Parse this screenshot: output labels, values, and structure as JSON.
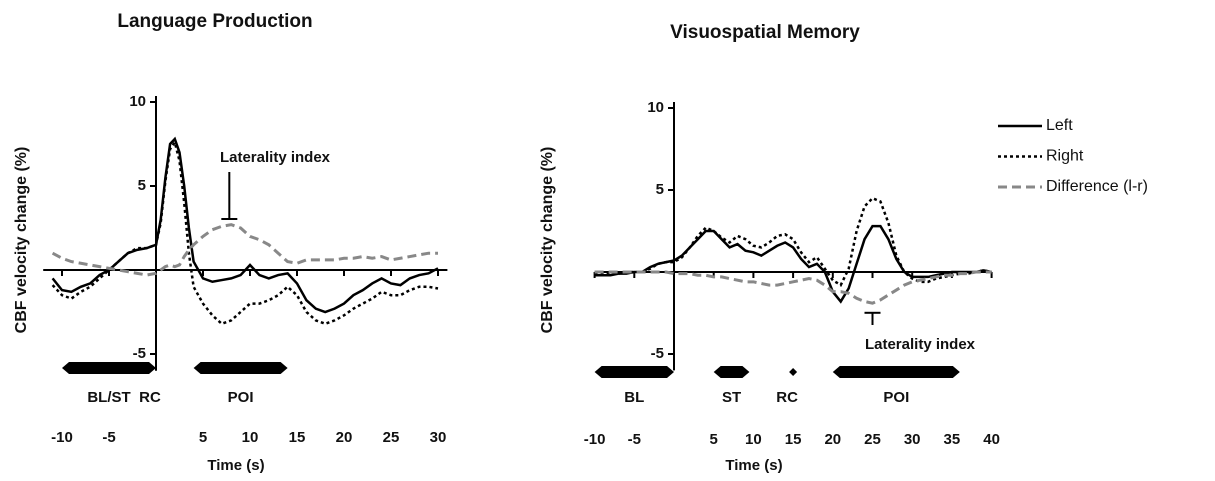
{
  "chart_data": [
    {
      "type": "line",
      "title": "Language Production",
      "y_label": "CBF velocity change (%)",
      "x_label": "Time (s)",
      "xlim": [
        -12,
        31
      ],
      "ylim": [
        -6,
        10
      ],
      "xticks": [
        -10,
        -5,
        5,
        10,
        15,
        20,
        25,
        30
      ],
      "yticks": [
        -5,
        5,
        10
      ],
      "x": [
        -11,
        -10,
        -9,
        -8,
        -7,
        -6,
        -5,
        -4,
        -3,
        -2,
        -1,
        0,
        0.5,
        1,
        1.5,
        2,
        2.5,
        3,
        3.5,
        4,
        5,
        6,
        7,
        8,
        9,
        10,
        11,
        12,
        13,
        14,
        15,
        16,
        17,
        18,
        19,
        20,
        21,
        22,
        23,
        24,
        25,
        26,
        27,
        28,
        29,
        30
      ],
      "series": [
        {
          "name": "Left",
          "color": "#000000",
          "dash": "solid",
          "values": [
            -0.5,
            -1.2,
            -1.3,
            -1,
            -0.8,
            -0.3,
            0,
            0.5,
            1,
            1.2,
            1.3,
            1.5,
            3,
            5.5,
            7.5,
            7.8,
            7,
            5,
            2.5,
            0.5,
            -0.5,
            -0.7,
            -0.6,
            -0.5,
            -0.3,
            0.3,
            -0.3,
            -0.5,
            -0.3,
            -0.2,
            -0.8,
            -1.8,
            -2.3,
            -2.5,
            -2.3,
            -2,
            -1.5,
            -1.2,
            -0.8,
            -0.5,
            -0.8,
            -0.9,
            -0.5,
            -0.3,
            -0.2,
            0.1
          ]
        },
        {
          "name": "Right",
          "color": "#000000",
          "dash": "dotted",
          "values": [
            -0.9,
            -1.5,
            -1.7,
            -1.3,
            -1,
            -0.5,
            0,
            0.5,
            1,
            1.3,
            1.3,
            1.5,
            2.8,
            5.3,
            7.2,
            7.6,
            6.5,
            4,
            1,
            -1,
            -2,
            -2.7,
            -3.2,
            -3,
            -2.5,
            -2,
            -2,
            -1.8,
            -1.5,
            -1,
            -1.5,
            -2.5,
            -3,
            -3.2,
            -3,
            -2.7,
            -2.3,
            -2,
            -1.7,
            -1.3,
            -1.5,
            -1.5,
            -1.2,
            -1,
            -1,
            -1.1
          ]
        },
        {
          "name": "Difference (l-r)",
          "color": "#888888",
          "dash": "dashed",
          "values": [
            1,
            0.7,
            0.5,
            0.4,
            0.3,
            0.2,
            0.1,
            0,
            -0.1,
            -0.2,
            -0.3,
            -0.2,
            0,
            0.2,
            0.3,
            0.2,
            0.3,
            0.8,
            1.2,
            1.5,
            2,
            2.4,
            2.6,
            2.7,
            2.5,
            2,
            1.8,
            1.5,
            1,
            0.5,
            0.4,
            0.6,
            0.6,
            0.6,
            0.6,
            0.7,
            0.7,
            0.8,
            0.7,
            0.8,
            0.6,
            0.7,
            0.8,
            0.9,
            1,
            1
          ]
        }
      ],
      "periods": [
        {
          "label": "BL/ST",
          "start": -10,
          "end": 0
        },
        {
          "label": "RC",
          "start": 0,
          "end": 0
        },
        {
          "label": "POI",
          "start": 4,
          "end": 14
        }
      ],
      "annotation": {
        "text": "Laterality index",
        "x": 7.8,
        "y": 2.8
      }
    },
    {
      "type": "line",
      "title": "Visuospatial Memory",
      "y_label": "CBF velocity change (%)",
      "x_label": "Time (s)",
      "xlim": [
        -10,
        40
      ],
      "ylim": [
        -6,
        10
      ],
      "xticks": [
        -10,
        -5,
        5,
        10,
        15,
        20,
        25,
        30,
        35,
        40
      ],
      "yticks": [
        -5,
        5,
        10
      ],
      "x": [
        -10,
        -9,
        -8,
        -7,
        -6,
        -5,
        -4,
        -3,
        -2,
        -1,
        0,
        1,
        2,
        3,
        4,
        5,
        6,
        7,
        8,
        9,
        10,
        11,
        12,
        13,
        14,
        15,
        16,
        17,
        18,
        19,
        20,
        21,
        22,
        23,
        24,
        25,
        26,
        27,
        28,
        29,
        30,
        31,
        32,
        33,
        34,
        35,
        36,
        37,
        38,
        39,
        40
      ],
      "series": [
        {
          "name": "Left",
          "color": "#000000",
          "dash": "solid",
          "values": [
            -0.2,
            -0.2,
            -0.2,
            -0.1,
            -0.1,
            0,
            0,
            0.3,
            0.5,
            0.6,
            0.7,
            1,
            1.5,
            2,
            2.5,
            2.5,
            2,
            1.5,
            1.7,
            1.3,
            1.2,
            1,
            1.3,
            1.6,
            1.8,
            1.5,
            0.8,
            0.3,
            0.5,
            0,
            -1.2,
            -1.8,
            -1,
            0.5,
            2,
            2.8,
            2.8,
            2,
            0.8,
            0,
            -0.3,
            -0.3,
            -0.3,
            -0.2,
            -0.1,
            0,
            0,
            0,
            0,
            0.1,
            0
          ]
        },
        {
          "name": "Right",
          "color": "#000000",
          "dash": "dotted",
          "values": [
            -0.1,
            -0.1,
            -0.1,
            -0.1,
            0,
            0,
            0,
            0.2,
            0.5,
            0.6,
            0.6,
            0.9,
            1.5,
            2.2,
            2.7,
            2.5,
            2.1,
            1.8,
            2.2,
            2,
            1.6,
            1.5,
            1.8,
            2.2,
            2.3,
            2,
            1.2,
            0.6,
            0.9,
            0.2,
            -0.5,
            -0.8,
            0.2,
            2.5,
            4,
            4.5,
            4.3,
            3,
            1,
            0,
            -0.4,
            -0.6,
            -0.6,
            -0.4,
            -0.3,
            -0.2,
            -0.1,
            -0.1,
            0,
            0.1,
            0
          ]
        },
        {
          "name": "Difference (l-r)",
          "color": "#888888",
          "dash": "dashed",
          "values": [
            0,
            0,
            0,
            0,
            0,
            0,
            0,
            0,
            0,
            0,
            -0.1,
            -0.1,
            -0.1,
            -0.2,
            -0.2,
            -0.3,
            -0.3,
            -0.4,
            -0.5,
            -0.6,
            -0.6,
            -0.7,
            -0.8,
            -0.8,
            -0.7,
            -0.6,
            -0.5,
            -0.4,
            -0.5,
            -0.8,
            -1.2,
            -1.2,
            -1.3,
            -1.6,
            -1.8,
            -1.9,
            -1.7,
            -1.4,
            -1.1,
            -0.8,
            -0.6,
            -0.5,
            -0.4,
            -0.3,
            -0.2,
            -0.2,
            -0.1,
            -0.1,
            0,
            0,
            0
          ]
        }
      ],
      "periods": [
        {
          "label": "BL",
          "start": -10,
          "end": 0
        },
        {
          "label": "ST",
          "start": 5,
          "end": 9.5
        },
        {
          "label": "RC",
          "start": 15,
          "end": 15
        },
        {
          "label": "POI",
          "start": 20,
          "end": 36
        }
      ],
      "annotation": {
        "text": "Laterality index",
        "x": 25,
        "y": -2
      },
      "legend": "right"
    }
  ]
}
